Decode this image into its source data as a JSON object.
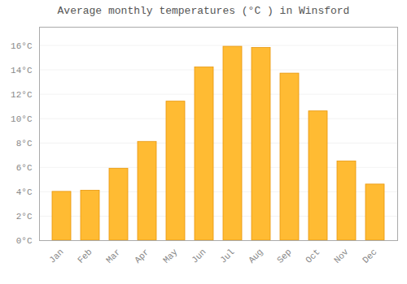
{
  "chart_data": {
    "type": "bar",
    "title": "Average monthly temperatures (°C ) in Winsford",
    "categories": [
      "Jan",
      "Feb",
      "Mar",
      "Apr",
      "May",
      "Jun",
      "Jul",
      "Aug",
      "Sep",
      "Oct",
      "Nov",
      "Dec"
    ],
    "values": [
      4.0,
      4.1,
      5.9,
      8.1,
      11.4,
      14.2,
      15.9,
      15.8,
      13.7,
      10.6,
      6.5,
      4.6
    ],
    "color": "#FFBB33",
    "ylim": [
      0,
      17.5
    ],
    "yticks": [
      {
        "value": 0,
        "label": "0°C"
      },
      {
        "value": 2,
        "label": "2°C"
      },
      {
        "value": 4,
        "label": "4°C"
      },
      {
        "value": 6,
        "label": "6°C"
      },
      {
        "value": 8,
        "label": "8°C"
      },
      {
        "value": 10,
        "label": "10°C"
      },
      {
        "value": 12,
        "label": "12°C"
      },
      {
        "value": 14,
        "label": "14°C"
      },
      {
        "value": 16,
        "label": "16°C"
      }
    ],
    "grid": true
  }
}
